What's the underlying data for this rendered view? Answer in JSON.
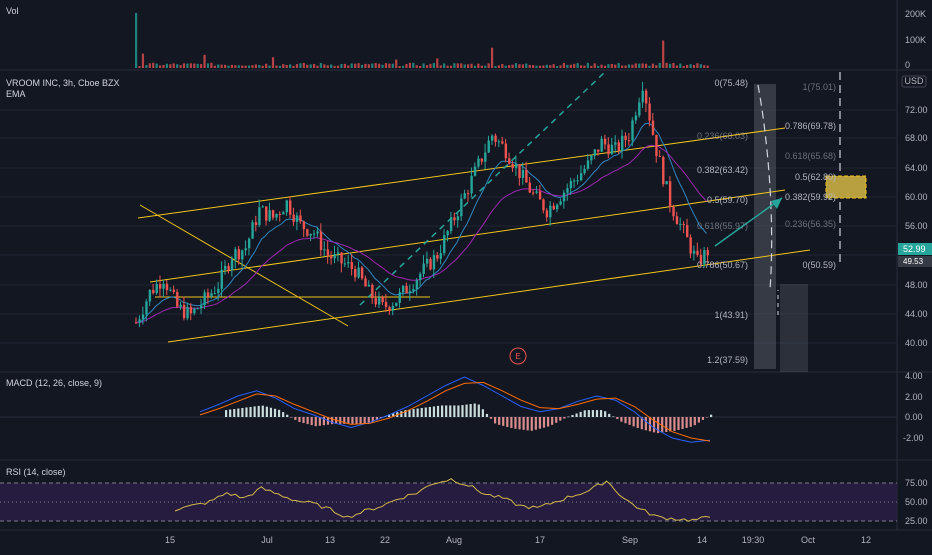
{
  "header": {
    "symbol": "VROOM INC, 3h, Cboe BZX",
    "indicator": "EMA",
    "currency": "USD",
    "event_marker": "E"
  },
  "panels": {
    "volume": {
      "label": "Vol"
    },
    "macd": {
      "label": "MACD (12, 26, close, 9)"
    },
    "rsi": {
      "label": "RSI (14, close)"
    }
  },
  "time_axis": [
    "15",
    "Jul",
    "13",
    "22",
    "Aug",
    "17",
    "Sep",
    "14",
    "19:30",
    "Oct",
    "12"
  ],
  "price_axis": [
    "72.00",
    "68.00",
    "64.00",
    "60.00",
    "56.00",
    "52.00",
    "48.00",
    "44.00",
    "40.00"
  ],
  "price_badges": {
    "last": "52.99",
    "other": "49.53"
  },
  "volume_axis": [
    "200K",
    "100K",
    "0"
  ],
  "macd_axis": [
    "4.00",
    "2.00",
    "0.00",
    "-2.00"
  ],
  "rsi_axis": [
    "75.00",
    "50.00",
    "25.00"
  ],
  "fib_left": [
    "0(75.48)",
    "0.236(68.03)",
    "0.382(63.42)",
    "0.5(59.70)",
    "0.618(55.97)",
    "0.786(50.67)",
    "1(43.91)",
    "1.2(37.59)"
  ],
  "fib_right": [
    "1(75.01)",
    "0.786(69.78)",
    "0.618(65.68)",
    "0.5(62.80)",
    "0.382(59.92)",
    "0.236(56.35)",
    "0(50.59)"
  ],
  "colors": {
    "background": "#131722",
    "grid": "#1f2433",
    "up": "#26a69a",
    "down": "#ef5350",
    "channel": "#f0c419",
    "ema_fast": "#2e86c1",
    "ema_slow": "#9c27b0",
    "macd_line": "#2962ff",
    "signal_line": "#ff6d00",
    "rsi_line": "#d4b84a",
    "rsi_band": "#311b4d",
    "arrow": "#26a69a",
    "fib_box": "#b8a040"
  },
  "chart_data": {
    "type": "candlestick",
    "title": "VROOM INC, 3h, Cboe BZX",
    "ylim": [
      37,
      78
    ],
    "close_path": [
      [
        0,
        43
      ],
      [
        2,
        47
      ],
      [
        4,
        49
      ],
      [
        6,
        45
      ],
      [
        8,
        44
      ],
      [
        10,
        46
      ],
      [
        12,
        48
      ],
      [
        14,
        52
      ],
      [
        16,
        53
      ],
      [
        18,
        58
      ],
      [
        20,
        57
      ],
      [
        22,
        59
      ],
      [
        24,
        56
      ],
      [
        26,
        55
      ],
      [
        28,
        52
      ],
      [
        30,
        51
      ],
      [
        32,
        50
      ],
      [
        34,
        47
      ],
      [
        36,
        45
      ],
      [
        38,
        46
      ],
      [
        40,
        48
      ],
      [
        42,
        50
      ],
      [
        44,
        52
      ],
      [
        46,
        56
      ],
      [
        48,
        60
      ],
      [
        50,
        64
      ],
      [
        52,
        68
      ],
      [
        54,
        66
      ],
      [
        56,
        63
      ],
      [
        58,
        60
      ],
      [
        60,
        58
      ],
      [
        62,
        60
      ],
      [
        64,
        62
      ],
      [
        66,
        64
      ],
      [
        68,
        67
      ],
      [
        70,
        66
      ],
      [
        72,
        68
      ],
      [
        74,
        75
      ],
      [
        76,
        66
      ],
      [
        78,
        59
      ],
      [
        80,
        55
      ],
      [
        82,
        51
      ],
      [
        84,
        53
      ]
    ],
    "last_close": 52.99,
    "fib_left_levels": [
      75.48,
      68.03,
      63.42,
      59.7,
      55.97,
      50.67,
      43.91,
      37.59
    ],
    "fib_right_levels": [
      75.01,
      69.78,
      65.68,
      62.8,
      59.92,
      56.35,
      50.59
    ],
    "volume_spikes": [
      {
        "x": 0,
        "v": 230
      },
      {
        "x": 1,
        "v": 60
      },
      {
        "x": 10,
        "v": 55
      },
      {
        "x": 20,
        "v": 45
      },
      {
        "x": 38,
        "v": 35
      },
      {
        "x": 44,
        "v": 40
      },
      {
        "x": 52,
        "v": 85
      },
      {
        "x": 77,
        "v": 115
      }
    ],
    "rsi_values": [
      40,
      45,
      50,
      62,
      55,
      68,
      60,
      52,
      48,
      40,
      30,
      38,
      45,
      55,
      62,
      75,
      80,
      72,
      60,
      55,
      45,
      42,
      50,
      58,
      65,
      78,
      55,
      40,
      30,
      28,
      26,
      30
    ],
    "macd_values": [
      0.5,
      1.2,
      2.0,
      2.5,
      1.8,
      0.8,
      0.2,
      -0.5,
      -1.0,
      -0.5,
      0.2,
      1.0,
      2.0,
      3.0,
      3.8,
      3.0,
      2.0,
      1.0,
      0.5,
      0.8,
      1.5,
      2.0,
      1.6,
      0.5,
      -1.0,
      -2.0,
      -2.4,
      -2.2
    ],
    "signal_values": [
      0.2,
      0.8,
      1.5,
      2.2,
      2.0,
      1.2,
      0.5,
      -0.2,
      -0.7,
      -0.6,
      -0.1,
      0.6,
      1.5,
      2.5,
      3.2,
      3.3,
      2.5,
      1.6,
      0.9,
      0.8,
      1.2,
      1.7,
      1.8,
      1.0,
      -0.3,
      -1.4,
      -2.0,
      -2.3
    ]
  }
}
